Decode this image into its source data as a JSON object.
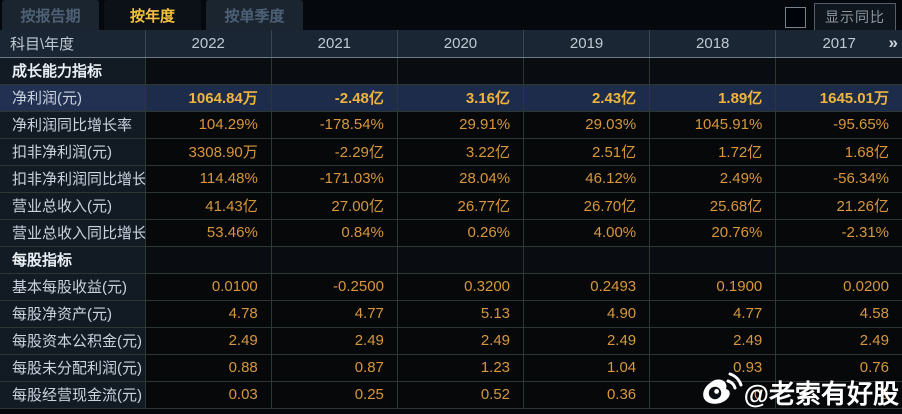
{
  "tabs": [
    {
      "label": "按报告期",
      "active": false
    },
    {
      "label": "按年度",
      "active": true
    },
    {
      "label": "按单季度",
      "active": false
    }
  ],
  "controls": {
    "show_yoy_label": "显示同比"
  },
  "table": {
    "corner_label": "科目\\年度",
    "years": [
      "2022",
      "2021",
      "2020",
      "2019",
      "2018",
      "2017"
    ],
    "pager_icon": "»",
    "rows": [
      {
        "type": "section",
        "label": "成长能力指标",
        "values": [
          "",
          "",
          "",
          "",
          "",
          ""
        ]
      },
      {
        "type": "data",
        "highlight": true,
        "label": "净利润(元)",
        "values": [
          "1064.84万",
          "-2.48亿",
          "3.16亿",
          "2.43亿",
          "1.89亿",
          "1645.01万"
        ]
      },
      {
        "type": "data",
        "highlight": false,
        "label": "净利润同比增长率",
        "values": [
          "104.29%",
          "-178.54%",
          "29.91%",
          "29.03%",
          "1045.91%",
          "-95.65%"
        ]
      },
      {
        "type": "data",
        "highlight": false,
        "label": "扣非净利润(元)",
        "values": [
          "3308.90万",
          "-2.29亿",
          "3.22亿",
          "2.51亿",
          "1.72亿",
          "1.68亿"
        ]
      },
      {
        "type": "data",
        "highlight": false,
        "label": "扣非净利润同比增长率",
        "values": [
          "114.48%",
          "-171.03%",
          "28.04%",
          "46.12%",
          "2.49%",
          "-56.34%"
        ]
      },
      {
        "type": "data",
        "highlight": false,
        "label": "营业总收入(元)",
        "values": [
          "41.43亿",
          "27.00亿",
          "26.77亿",
          "26.70亿",
          "25.68亿",
          "21.26亿"
        ]
      },
      {
        "type": "data",
        "highlight": false,
        "label": "营业总收入同比增长率",
        "values": [
          "53.46%",
          "0.84%",
          "0.26%",
          "4.00%",
          "20.76%",
          "-2.31%"
        ]
      },
      {
        "type": "section",
        "label": "每股指标",
        "values": [
          "",
          "",
          "",
          "",
          "",
          ""
        ]
      },
      {
        "type": "data",
        "highlight": false,
        "label": "基本每股收益(元)",
        "values": [
          "0.0100",
          "-0.2500",
          "0.3200",
          "0.2493",
          "0.1900",
          "0.0200"
        ]
      },
      {
        "type": "data",
        "highlight": false,
        "label": "每股净资产(元)",
        "values": [
          "4.78",
          "4.77",
          "5.13",
          "4.90",
          "4.77",
          "4.58"
        ]
      },
      {
        "type": "data",
        "highlight": false,
        "label": "每股资本公积金(元)",
        "values": [
          "2.49",
          "2.49",
          "2.49",
          "2.49",
          "2.49",
          "2.49"
        ]
      },
      {
        "type": "data",
        "highlight": false,
        "label": "每股未分配利润(元)",
        "values": [
          "0.88",
          "0.87",
          "1.23",
          "1.04",
          "0.93",
          "0.76"
        ]
      },
      {
        "type": "data",
        "highlight": false,
        "label": "每股经营现金流(元)",
        "values": [
          "0.03",
          "0.25",
          "0.52",
          "0.36",
          "0",
          "9"
        ]
      }
    ]
  },
  "watermark": {
    "handle": "@老索有好股",
    "icon": "weibo-icon"
  },
  "colors": {
    "value_orange": "#d8973c",
    "highlight_gold": "#efb43e",
    "tab_active_gold": "#f2c13d",
    "highlight_row_bg": "#1d2c4a",
    "header_bg": "#1b2634",
    "label_col_bg": "#121a24",
    "data_cell_bg": "#06080a"
  }
}
